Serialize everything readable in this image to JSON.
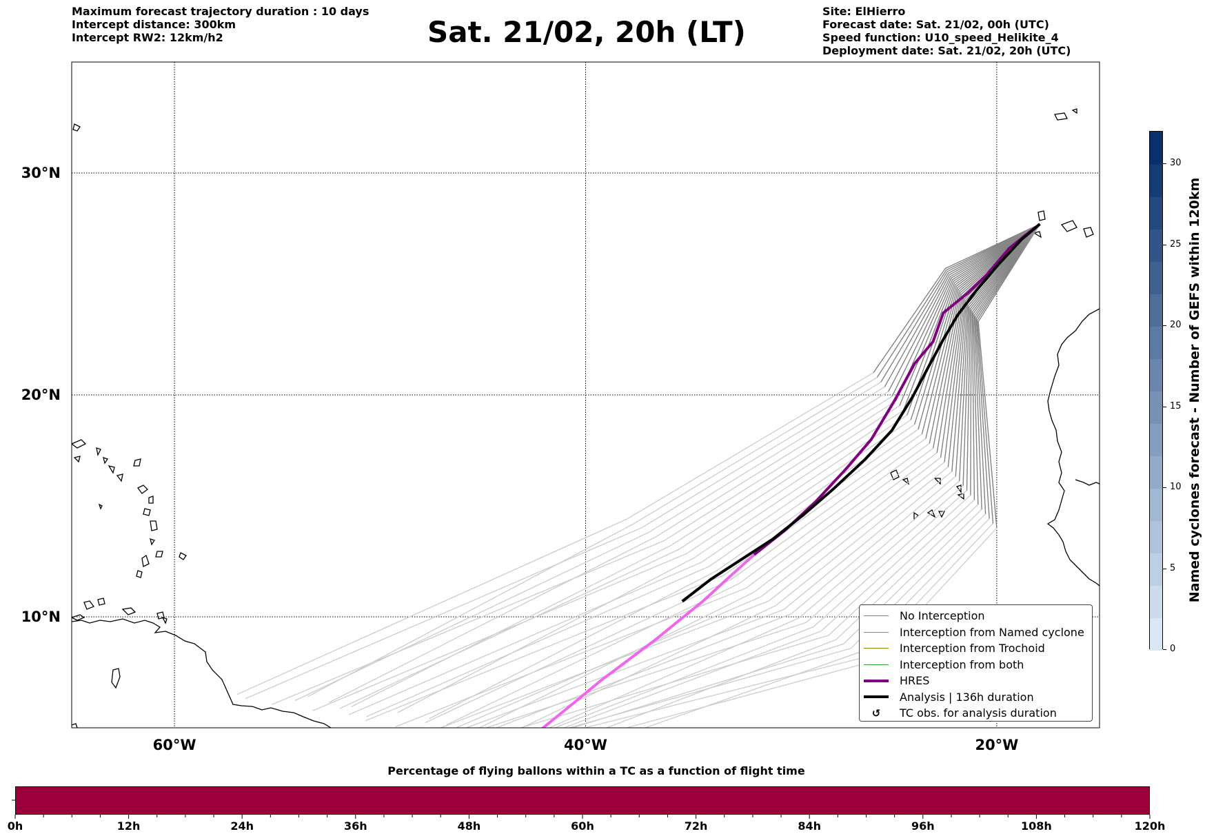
{
  "header": {
    "left": [
      "Maximum forecast trajectory duration : 10 days",
      "Intercept distance: 300km",
      "Intercept RW2: 12km/h2"
    ],
    "title": "Sat. 21/02, 20h (LT)",
    "right": [
      "Site: ElHierro",
      "Forecast date: Sat. 21/02, 00h (UTC)",
      "Speed function: U10_speed_Helikite_4",
      "Deployment date: Sat. 21/02, 20h (UTC)"
    ]
  },
  "colors": {
    "no_interception": "#808080",
    "named_cyclone": "#ff5a1f",
    "trochoid": "#8a8a00",
    "both": "#2ca02c",
    "hres": "#800080",
    "hres_extended": "#ee66ee",
    "analysis": "#000000",
    "bottom_bar": "#9b003a",
    "ensemble_extended": "#cccccc"
  },
  "legend": [
    {
      "label": "No Interception",
      "kind": "line",
      "color": "#808080",
      "width": 1
    },
    {
      "label": "Interception from Named cyclone",
      "kind": "line",
      "color": "#ff5a1f",
      "width": 1
    },
    {
      "label": "Interception from Trochoid",
      "kind": "line",
      "color": "#8a8a00",
      "width": 1
    },
    {
      "label": "Interception from both",
      "kind": "line",
      "color": "#2ca02c",
      "width": 1
    },
    {
      "label": "HRES",
      "kind": "line",
      "color": "#800080",
      "width": 4
    },
    {
      "label": "Analysis | 136h duration",
      "kind": "line",
      "color": "#000000",
      "width": 4
    },
    {
      "label": "TC obs. for analysis duration",
      "kind": "symbol",
      "symbol": "↺"
    }
  ],
  "colorbar": {
    "label": "Named cyclones forecast - Number of GEFS within 120km",
    "ticks": [
      0,
      5,
      10,
      15,
      20,
      25,
      30
    ],
    "range": [
      0,
      32
    ]
  },
  "bottom": {
    "title": "Percentage of flying ballons within a TC as a function of flight time",
    "ticks": [
      "0h",
      "12h",
      "24h",
      "36h",
      "48h",
      "60h",
      "72h",
      "84h",
      "96h",
      "108h",
      "120h"
    ]
  },
  "chart_data": {
    "type": "line",
    "title": "Sat. 21/02, 20h (LT)",
    "xlabel": "",
    "ylabel": "",
    "lon_range": [
      -65,
      -15
    ],
    "lat_range": [
      5,
      35
    ],
    "x_ticks": [
      {
        "lon": -60,
        "label": "60°W"
      },
      {
        "lon": -40,
        "label": "40°W"
      },
      {
        "lon": -20,
        "label": "20°W"
      }
    ],
    "y_ticks": [
      {
        "lat": 30,
        "label": "30°N"
      },
      {
        "lat": 20,
        "label": "20°N"
      },
      {
        "lat": 10,
        "label": "10°N"
      }
    ],
    "grid": true,
    "legend_position": "lower-right",
    "series": [
      {
        "name": "HRES",
        "color": "#800080",
        "width": 4,
        "points": [
          [
            -17.9,
            27.7
          ],
          [
            -18.6,
            27.2
          ],
          [
            -19.4,
            26.6
          ],
          [
            -20.5,
            25.4
          ],
          [
            -21.4,
            24.6
          ],
          [
            -22.6,
            23.7
          ],
          [
            -23.1,
            22.4
          ],
          [
            -24.0,
            21.4
          ],
          [
            -25.0,
            19.7
          ],
          [
            -26.1,
            18.0
          ],
          [
            -27.3,
            16.7
          ],
          [
            -28.8,
            15.2
          ],
          [
            -30.3,
            13.9
          ],
          [
            -31.8,
            12.8
          ]
        ],
        "extension": {
          "color": "#ee66ee",
          "points": [
            [
              -31.8,
              12.8
            ],
            [
              -33.0,
              11.8
            ],
            [
              -34.3,
              10.7
            ],
            [
              -35.5,
              9.8
            ],
            [
              -36.7,
              8.9
            ],
            [
              -38.0,
              8.0
            ],
            [
              -39.3,
              7.1
            ],
            [
              -40.6,
              6.1
            ],
            [
              -42.2,
              4.9
            ]
          ]
        }
      },
      {
        "name": "Analysis | 136h duration",
        "color": "#000000",
        "width": 4,
        "points": [
          [
            -17.9,
            27.7
          ],
          [
            -18.8,
            27.0
          ],
          [
            -19.9,
            25.9
          ],
          [
            -21.0,
            24.7
          ],
          [
            -21.9,
            23.6
          ],
          [
            -22.6,
            22.5
          ],
          [
            -23.3,
            21.3
          ],
          [
            -24.1,
            19.9
          ],
          [
            -25.1,
            18.4
          ],
          [
            -26.4,
            17.1
          ],
          [
            -27.9,
            15.8
          ],
          [
            -29.4,
            14.6
          ],
          [
            -30.9,
            13.5
          ],
          [
            -32.4,
            12.6
          ],
          [
            -33.9,
            11.7
          ],
          [
            -35.3,
            10.7
          ]
        ]
      }
    ]
  }
}
